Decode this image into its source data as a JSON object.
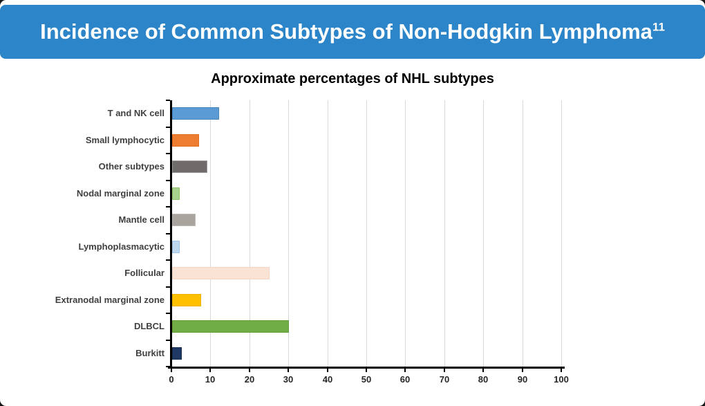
{
  "page": {
    "slide_background": "#FFFFFF",
    "outside_corner_color": "#161616"
  },
  "header": {
    "title": "Incidence of Common Subtypes of Non-Hodgkin Lymphoma",
    "superscript": "11",
    "background": "#2C85C8",
    "text_color": "#FFFFFF"
  },
  "chart_data": {
    "type": "bar",
    "orientation": "horizontal",
    "title": "Approximate percentages of NHL subtypes",
    "units": "percent",
    "categories": [
      "T and NK cell",
      "Small lymphocytic",
      "Other subtypes",
      "Nodal marginal zone",
      "Mantle cell",
      "Lymphoplasmacytic",
      "Follicular",
      "Extranodal marginal zone",
      "DLBCL",
      "Burkitt"
    ],
    "values": [
      12,
      7,
      9,
      2,
      6,
      2,
      25,
      7.5,
      30,
      2.5
    ],
    "bar_colors": [
      "#5B9BD5",
      "#ED7D31",
      "#6F6B6B",
      "#A9D18E",
      "#A9A49E",
      "#BDD7EE",
      "#FAE3D4",
      "#FFC000",
      "#70AD47",
      "#1F3864"
    ],
    "bar_border_colors": [
      "#4A86C0",
      "#E06F23",
      "#A09C9C",
      "#90C36F",
      "#BFBBB5",
      "#9DC3E6",
      "#F2D5C2",
      "#EDB100",
      "#63A03C",
      "#172C4F"
    ],
    "xlabel": "",
    "ylabel": "",
    "xlim": [
      0,
      100
    ],
    "x_ticks": [
      0,
      10,
      20,
      30,
      40,
      50,
      60,
      70,
      80,
      90,
      100
    ],
    "grid": true,
    "gridline_color": "#D9D9D9",
    "axis_color": "#000000",
    "category_label_color": "#3F3F3F",
    "tick_label_color": "#262626",
    "legend": "none"
  }
}
